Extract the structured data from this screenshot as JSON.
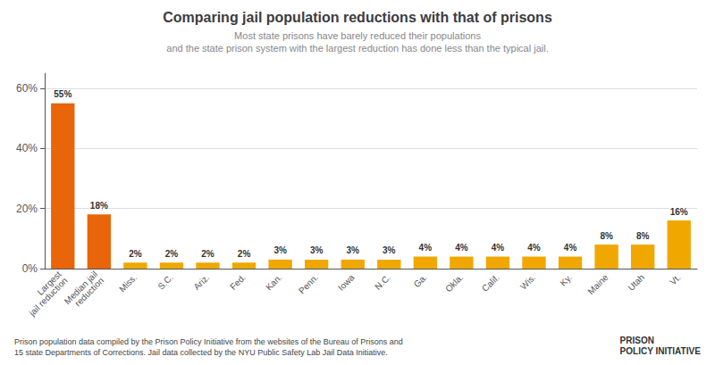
{
  "chart_data": {
    "type": "bar",
    "title": "Comparing jail population reductions with that of prisons",
    "subtitle": "Most state prisons have barely reduced their populations\nand the state prison system with the largest reduction has done less than the typical jail.",
    "categories": [
      "Largest\njail reduction",
      "Median jail\nreduction",
      "Miss.",
      "S.C.",
      "Ariz.",
      "Fed.",
      "Kan.",
      "Penn.",
      "Iowa",
      "N.C.",
      "Ga.",
      "Okla.",
      "Calif.",
      "Wis.",
      "Ky.",
      "Maine",
      "Utah",
      "Vt."
    ],
    "values": [
      55,
      18,
      2,
      2,
      2,
      2,
      3,
      3,
      3,
      3,
      4,
      4,
      4,
      4,
      4,
      8,
      8,
      16
    ],
    "value_labels": [
      "55%",
      "18%",
      "2%",
      "2%",
      "2%",
      "2%",
      "3%",
      "3%",
      "3%",
      "3%",
      "4%",
      "4%",
      "4%",
      "4%",
      "4%",
      "8%",
      "8%",
      "16%"
    ],
    "colors": [
      "#E8650A",
      "#E8650A",
      "#F0A800",
      "#F0A800",
      "#F0A800",
      "#F0A800",
      "#F0A800",
      "#F0A800",
      "#F0A800",
      "#F0A800",
      "#F0A800",
      "#F0A800",
      "#F0A800",
      "#F0A800",
      "#F0A800",
      "#F0A800",
      "#F0A800",
      "#F0A800"
    ],
    "ylim": [
      0,
      65
    ],
    "yticks": [
      {
        "value": 0,
        "label": "0%"
      },
      {
        "value": 20,
        "label": "20%"
      },
      {
        "value": 40,
        "label": "40%"
      },
      {
        "value": 60,
        "label": "60%"
      }
    ],
    "grid": true,
    "data_labels": true,
    "annotations": [
      "Prison population data compiled by the Prison Policy Initiative from the websites of the Bureau of Prisons and\n15 state Departments of Corrections. Jail data collected by the NYU Public Safety Lab Jail Data Initiative.",
      "PRISON\nPOLICY INITIATIVE"
    ]
  }
}
